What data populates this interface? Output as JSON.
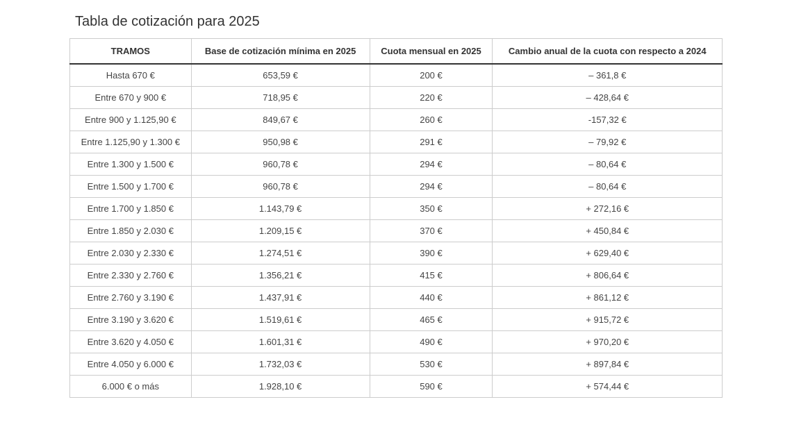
{
  "title": "Tabla de cotización para 2025",
  "table": {
    "type": "table",
    "columns": [
      "TRAMOS",
      "Base de cotización mínima en 2025",
      "Cuota mensual en 2025",
      "Cambio anual de la cuota con respecto a 2024"
    ],
    "column_widths_pct": [
      24,
      23,
      23,
      30
    ],
    "header_fontweight": 700,
    "header_fontsize": 13,
    "cell_fontsize": 13,
    "border_color": "#cccccc",
    "header_bottom_border_color": "#333333",
    "text_color": "#444444",
    "background_color": "#ffffff",
    "rows": [
      [
        "Hasta 670 €",
        "653,59 €",
        "200 €",
        "– 361,8 €"
      ],
      [
        "Entre 670 y 900 €",
        "718,95 €",
        "220 €",
        "– 428,64 €"
      ],
      [
        "Entre 900 y 1.125,90 €",
        "849,67 €",
        "260 €",
        "-157,32 €"
      ],
      [
        "Entre 1.125,90 y 1.300 €",
        "950,98 €",
        "291 €",
        "– 79,92 €"
      ],
      [
        "Entre 1.300 y 1.500 €",
        "960,78 €",
        "294 €",
        "– 80,64 €"
      ],
      [
        "Entre 1.500 y 1.700 €",
        "960,78 €",
        "294 €",
        "– 80,64 €"
      ],
      [
        "Entre 1.700 y 1.850 €",
        "1.143,79 €",
        "350 €",
        "+ 272,16 €"
      ],
      [
        "Entre 1.850 y 2.030 €",
        "1.209,15 €",
        "370 €",
        "+ 450,84 €"
      ],
      [
        "Entre 2.030 y 2.330 €",
        "1.274,51 €",
        "390 €",
        "+ 629,40 €"
      ],
      [
        "Entre 2.330 y 2.760 €",
        "1.356,21 €",
        "415 €",
        "+ 806,64 €"
      ],
      [
        "Entre 2.760 y 3.190 €",
        "1.437,91 €",
        "440 €",
        "+ 861,12 €"
      ],
      [
        "Entre 3.190 y 3.620 €",
        "1.519,61 €",
        "465 €",
        "+ 915,72 €"
      ],
      [
        "Entre 3.620 y 4.050 €",
        "1.601,31 €",
        "490 €",
        "+ 970,20 €"
      ],
      [
        "Entre 4.050 y 6.000 €",
        "1.732,03 €",
        "530 €",
        "+ 897,84 €"
      ],
      [
        "6.000 € o más",
        "1.928,10 €",
        "590 €",
        "+ 574,44 €"
      ]
    ]
  }
}
